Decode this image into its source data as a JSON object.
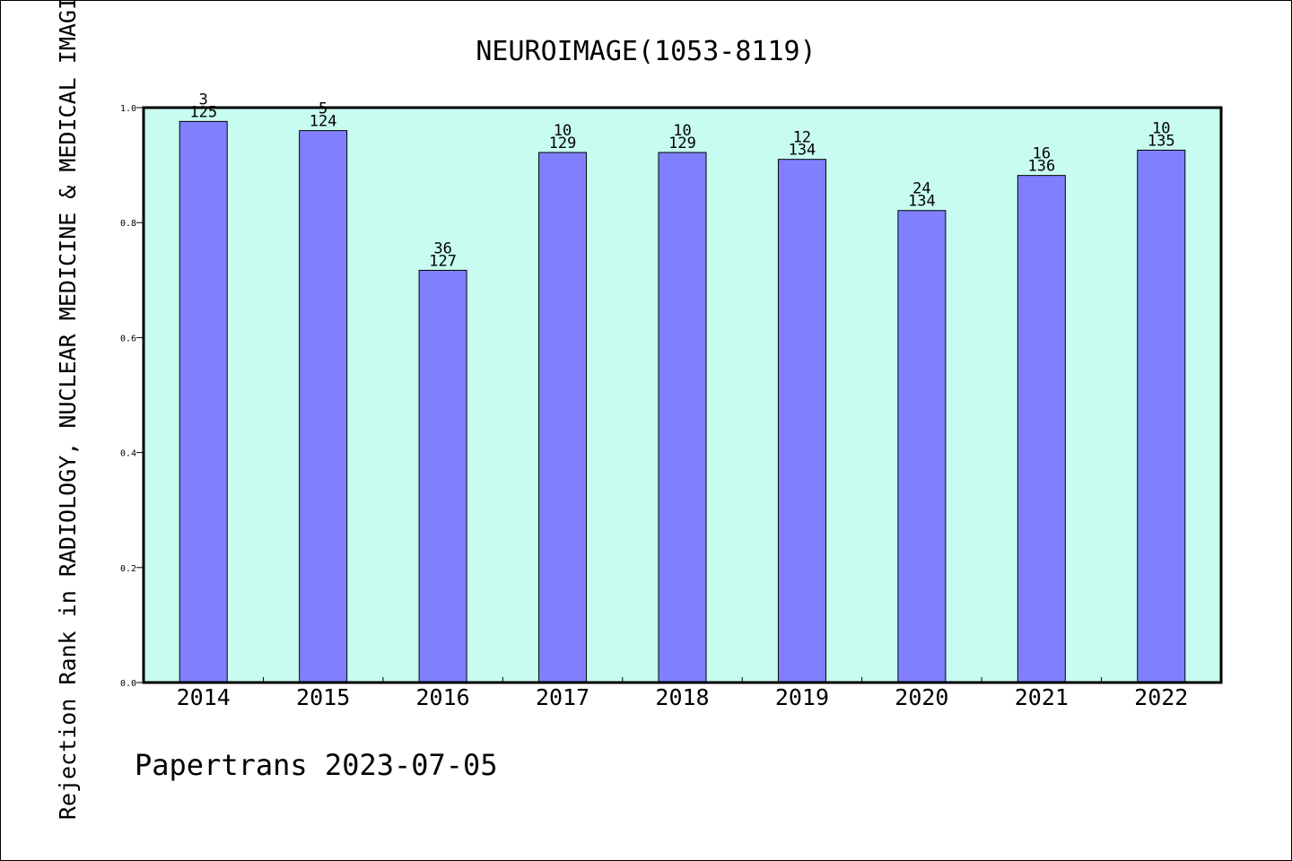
{
  "chart_data": {
    "type": "bar",
    "title": "NEUROIMAGE(1053-8119)",
    "xlabel": "",
    "ylabel": "Rejection Rank in RADIOLOGY, NUCLEAR MEDICINE & MEDICAL IMAGING",
    "categories": [
      "2014",
      "2015",
      "2016",
      "2017",
      "2018",
      "2019",
      "2020",
      "2021",
      "2022"
    ],
    "values": [
      0.976,
      0.96,
      0.717,
      0.922,
      0.922,
      0.91,
      0.821,
      0.882,
      0.926
    ],
    "rank_labels": [
      "3",
      "5",
      "36",
      "10",
      "10",
      "12",
      "24",
      "16",
      "10"
    ],
    "total_labels": [
      "125",
      "124",
      "127",
      "129",
      "129",
      "134",
      "134",
      "136",
      "135"
    ],
    "ylim": [
      0,
      1.0
    ],
    "yticks": [
      "0.0",
      "0.2",
      "0.4",
      "0.6",
      "0.8",
      "1.0"
    ],
    "grid": false,
    "legend": "none",
    "colors": {
      "bar": "#8080ff",
      "plot_background": "#c8fcf0",
      "axis": "#000000"
    }
  },
  "footer": {
    "text": "Papertrans 2023-07-05"
  }
}
